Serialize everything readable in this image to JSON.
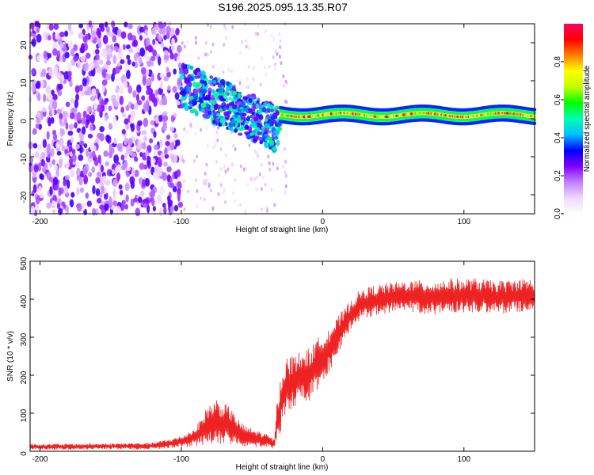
{
  "figure": {
    "title": "S196.2025.095.13.35.R07"
  },
  "chart_data": [
    {
      "type": "heatmap",
      "xlabel": "Height of straight line (km)",
      "ylabel": "Frequency (Hz)",
      "xlim": [
        -207,
        150
      ],
      "ylim": [
        -25,
        25
      ],
      "xticks": [
        -200,
        -100,
        0,
        100
      ],
      "yticks": [
        -20,
        -10,
        0,
        10,
        20
      ],
      "colorbar": {
        "label": "Normalized spectral amplitude",
        "range": [
          0,
          1
        ],
        "ticks": [
          "0.0",
          "0.2",
          "0.4",
          "0.6",
          "0.8"
        ],
        "tick_values": [
          0.0,
          0.2,
          0.4,
          0.6,
          0.8
        ],
        "colormap": [
          "#ffffff",
          "#f0d8ff",
          "#c080ff",
          "#8000ff",
          "#0000ff",
          "#00c0ff",
          "#00ffb0",
          "#00ff00",
          "#c0ff00",
          "#ffff00",
          "#ff8000",
          "#ff0000",
          "#ff0060"
        ]
      },
      "regions": [
        {
          "name": "noise",
          "x_range": [
            -207,
            -100
          ],
          "freq_range": [
            -25,
            25
          ],
          "intensity": [
            0.05,
            0.3
          ]
        },
        {
          "name": "onset",
          "x_range": [
            -100,
            -30
          ],
          "freq_center_start": 9,
          "freq_center_end": -3,
          "intensity": [
            0.2,
            0.55
          ]
        },
        {
          "name": "tone",
          "x_range": [
            -30,
            150
          ],
          "freq_center": 1,
          "intensity": [
            0.6,
            0.95
          ]
        }
      ],
      "grid": false
    },
    {
      "type": "line",
      "xlabel": "Height of straight line (km)",
      "ylabel": "SNR (10 * v/v)",
      "xlim": [
        -207,
        150
      ],
      "ylim": [
        0,
        500
      ],
      "xticks": [
        -200,
        -100,
        0,
        100
      ],
      "yticks": [
        0,
        100,
        200,
        300,
        400,
        500
      ],
      "color": "#ee2222",
      "series": [
        {
          "x": [
            -207,
            -180,
            -150,
            -120,
            -100,
            -90,
            -85,
            -80,
            -75,
            -70,
            -65,
            -60,
            -55,
            -50,
            -45,
            -40,
            -36,
            -34,
            -33,
            -30,
            -28,
            -25,
            -20,
            -15,
            -10,
            -5,
            0,
            5,
            10,
            15,
            20,
            25,
            30,
            40,
            50,
            60,
            70,
            80,
            90,
            100,
            110,
            120,
            130,
            140,
            150
          ],
          "mean": [
            12,
            12,
            13,
            14,
            25,
            38,
            55,
            72,
            75,
            72,
            65,
            50,
            40,
            35,
            32,
            28,
            22,
            18,
            60,
            120,
            150,
            170,
            185,
            195,
            200,
            220,
            250,
            270,
            300,
            330,
            360,
            380,
            390,
            400,
            405,
            410,
            405,
            405,
            410,
            410,
            410,
            405,
            405,
            410,
            410
          ],
          "amp": [
            8,
            8,
            8,
            9,
            15,
            25,
            40,
            55,
            65,
            55,
            50,
            35,
            28,
            25,
            22,
            18,
            15,
            12,
            50,
            70,
            80,
            80,
            70,
            70,
            70,
            70,
            65,
            60,
            50,
            45,
            40,
            40,
            40,
            40,
            40,
            40,
            45,
            45,
            45,
            45,
            45,
            45,
            45,
            45,
            45
          ]
        }
      ],
      "grid": false
    }
  ]
}
